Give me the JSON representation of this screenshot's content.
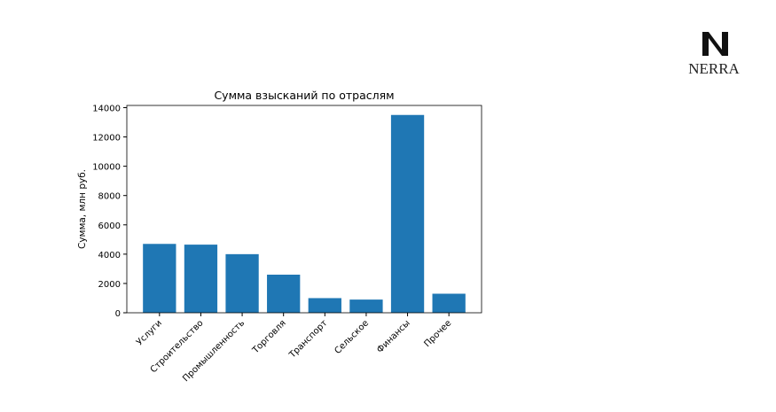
{
  "logo": {
    "text": "NERRA"
  },
  "chart_data": {
    "type": "bar",
    "title": "Сумма взысканий по отраслям",
    "y_label": "Сумма, млн руб.",
    "categories": [
      "Услуги",
      "Строительство",
      "Промышленность",
      "Торговля",
      "Транспорт",
      "Сельское",
      "Финансы",
      "Прочее"
    ],
    "values": [
      4700,
      4650,
      4000,
      2600,
      1000,
      900,
      13500,
      1300
    ],
    "color": "#1f77b4",
    "ylim": [
      0,
      14150
    ],
    "yticks": [
      0,
      2000,
      4000,
      6000,
      8000,
      10000,
      12000,
      14000
    ],
    "grid": false
  }
}
